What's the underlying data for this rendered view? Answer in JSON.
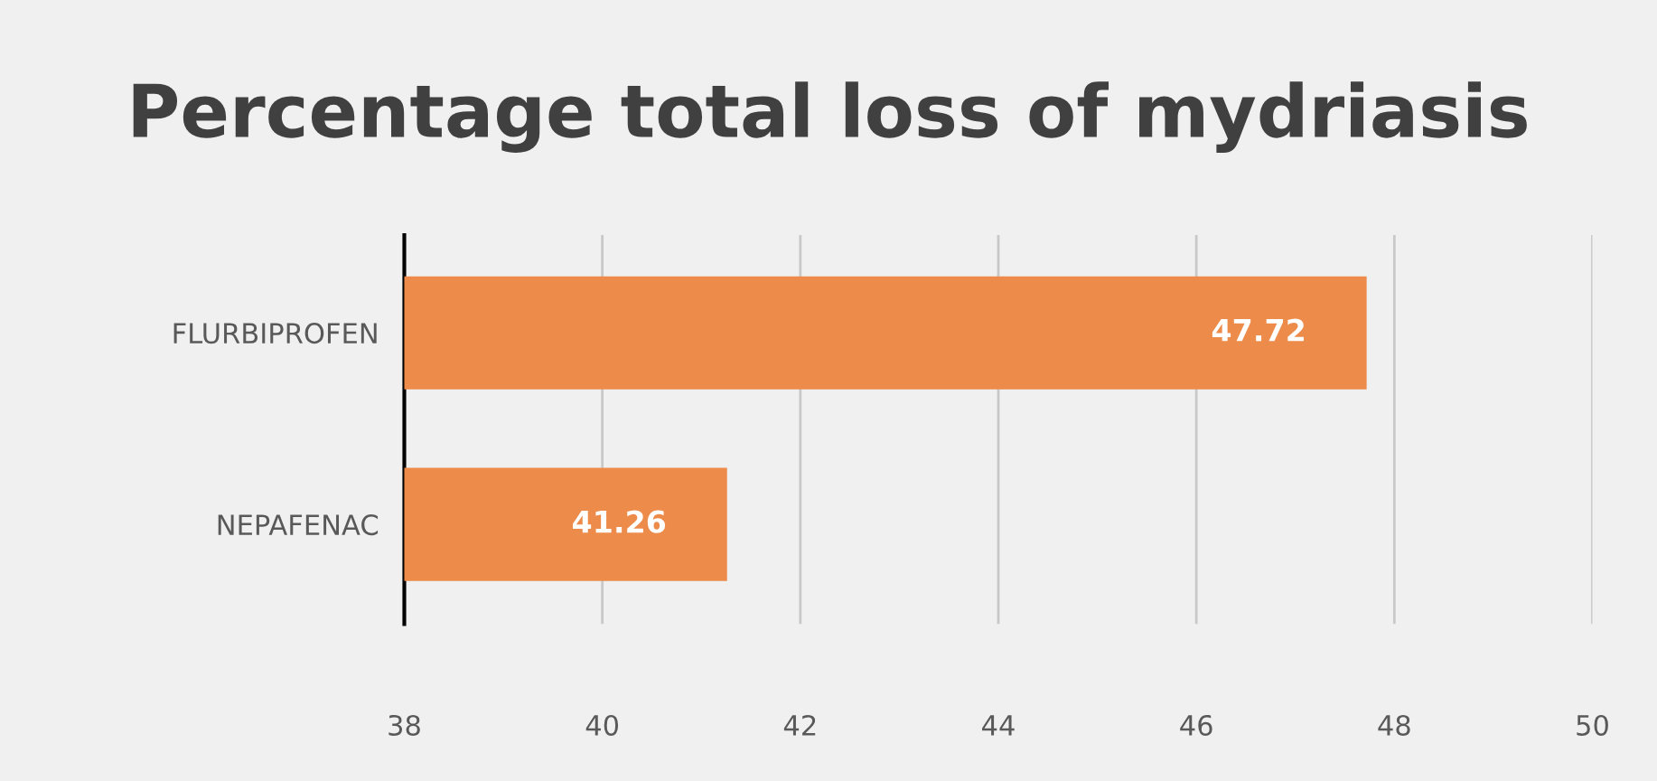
{
  "chart_data": {
    "type": "bar",
    "orientation": "horizontal",
    "title": "Percentage total loss of mydriasis",
    "categories": [
      "FLURBIPROFEN",
      "NEPAFENAC"
    ],
    "values": [
      47.72,
      41.26
    ],
    "color": "#ed8b4a",
    "xlim": [
      38,
      50
    ],
    "xticks": [
      38,
      40,
      42,
      44,
      46,
      48,
      50
    ],
    "grid": "x",
    "data_labels": true
  }
}
